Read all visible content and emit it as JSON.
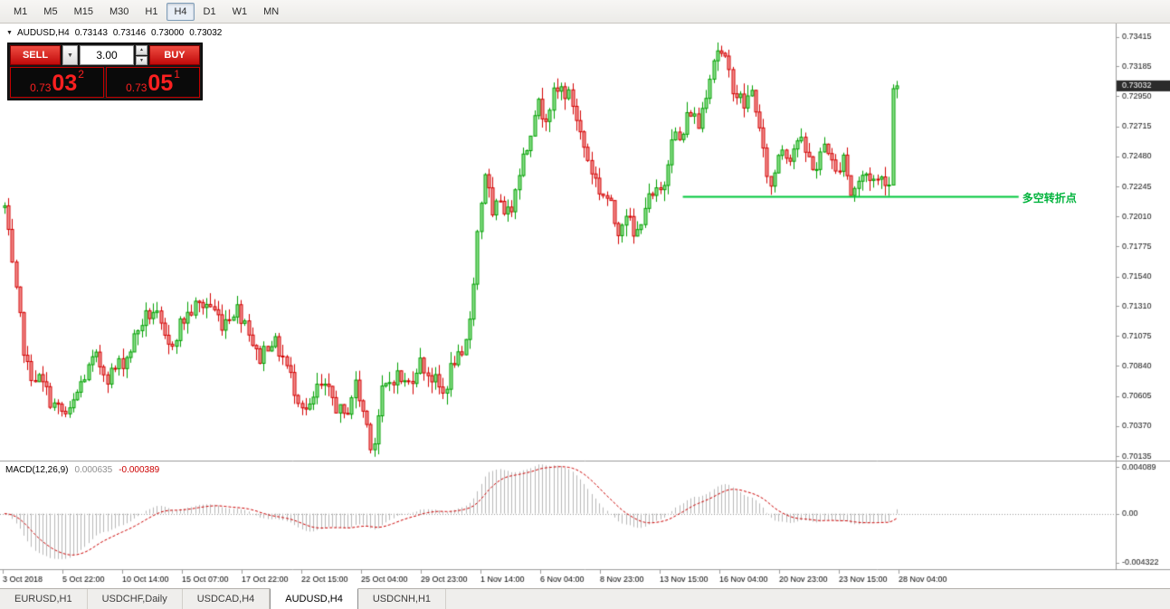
{
  "toolbar": {
    "timeframes": [
      {
        "label": "M1",
        "active": false
      },
      {
        "label": "M5",
        "active": false
      },
      {
        "label": "M15",
        "active": false
      },
      {
        "label": "M30",
        "active": false
      },
      {
        "label": "H1",
        "active": false
      },
      {
        "label": "H4",
        "active": true
      },
      {
        "label": "D1",
        "active": false
      },
      {
        "label": "W1",
        "active": false
      },
      {
        "label": "MN",
        "active": false
      }
    ]
  },
  "symbol_info": {
    "symbol": "AUDUSD,H4",
    "open": "0.73143",
    "high": "0.73146",
    "low": "0.73000",
    "close": "0.73032"
  },
  "trade_widget": {
    "sell_label": "SELL",
    "buy_label": "BUY",
    "volume": "3.00",
    "dropdown_icon": "▼",
    "spin_up_icon": "▲",
    "spin_down_icon": "▼",
    "sell_price": {
      "base": "0.73",
      "big": "03",
      "sup": "2"
    },
    "buy_price": {
      "base": "0.73",
      "big": "05",
      "sup": "1"
    }
  },
  "chart_data": [
    {
      "type": "candlestick",
      "title": "AUDUSD H4 candlestick chart",
      "symbol": "AUDUSD",
      "timeframe": "H4",
      "y_axis": {
        "ticks": [
          "0.73415",
          "0.73185",
          "0.72950",
          "0.72715",
          "0.72480",
          "0.72245",
          "0.72010",
          "0.71775",
          "0.71540",
          "0.71310",
          "0.71075",
          "0.70840",
          "0.70605",
          "0.70370",
          "0.70135"
        ],
        "price_max": 0.7352,
        "price_min": 0.701,
        "current_price": "0.73032",
        "current_price_value": 0.73032
      },
      "x_axis": {
        "labels": [
          "3 Oct 2018",
          "5 Oct 22:00",
          "10 Oct 14:00",
          "15 Oct 07:00",
          "17 Oct 22:00",
          "22 Oct 15:00",
          "25 Oct 04:00",
          "29 Oct 23:00",
          "1 Nov 14:00",
          "6 Nov 04:00",
          "8 Nov 23:00",
          "13 Nov 15:00",
          "16 Nov 04:00",
          "20 Nov 23:00",
          "23 Nov 15:00",
          "28 Nov 04:00"
        ]
      },
      "candle_count": 235,
      "path_anchors": [
        [
          0.004,
          0.7208
        ],
        [
          0.012,
          0.7152
        ],
        [
          0.024,
          0.7082
        ],
        [
          0.036,
          0.7072
        ],
        [
          0.049,
          0.7052
        ],
        [
          0.061,
          0.7044
        ],
        [
          0.073,
          0.7072
        ],
        [
          0.085,
          0.709
        ],
        [
          0.097,
          0.7076
        ],
        [
          0.114,
          0.7092
        ],
        [
          0.126,
          0.7118
        ],
        [
          0.138,
          0.7128
        ],
        [
          0.15,
          0.7096
        ],
        [
          0.162,
          0.7118
        ],
        [
          0.174,
          0.713
        ],
        [
          0.187,
          0.7133
        ],
        [
          0.199,
          0.7118
        ],
        [
          0.211,
          0.713
        ],
        [
          0.221,
          0.7118
        ],
        [
          0.231,
          0.7088
        ],
        [
          0.242,
          0.7106
        ],
        [
          0.253,
          0.7092
        ],
        [
          0.264,
          0.7066
        ],
        [
          0.276,
          0.7046
        ],
        [
          0.285,
          0.7068
        ],
        [
          0.297,
          0.706
        ],
        [
          0.308,
          0.7042
        ],
        [
          0.318,
          0.707
        ],
        [
          0.328,
          0.704
        ],
        [
          0.334,
          0.7018
        ],
        [
          0.342,
          0.7062
        ],
        [
          0.354,
          0.7078
        ],
        [
          0.365,
          0.7068
        ],
        [
          0.375,
          0.7088
        ],
        [
          0.386,
          0.7076
        ],
        [
          0.397,
          0.7062
        ],
        [
          0.407,
          0.709
        ],
        [
          0.415,
          0.7086
        ],
        [
          0.422,
          0.713
        ],
        [
          0.428,
          0.7192
        ],
        [
          0.435,
          0.724
        ],
        [
          0.441,
          0.7196
        ],
        [
          0.448,
          0.7216
        ],
        [
          0.456,
          0.72
        ],
        [
          0.464,
          0.7236
        ],
        [
          0.472,
          0.7256
        ],
        [
          0.48,
          0.729
        ],
        [
          0.488,
          0.728
        ],
        [
          0.496,
          0.7295
        ],
        [
          0.504,
          0.7301
        ],
        [
          0.513,
          0.729
        ],
        [
          0.521,
          0.7262
        ],
        [
          0.529,
          0.724
        ],
        [
          0.537,
          0.7222
        ],
        [
          0.545,
          0.7214
        ],
        [
          0.553,
          0.719
        ],
        [
          0.561,
          0.7206
        ],
        [
          0.569,
          0.718
        ],
        [
          0.577,
          0.721
        ],
        [
          0.586,
          0.7216
        ],
        [
          0.594,
          0.7222
        ],
        [
          0.602,
          0.7268
        ],
        [
          0.61,
          0.7258
        ],
        [
          0.618,
          0.7286
        ],
        [
          0.626,
          0.7272
        ],
        [
          0.634,
          0.7306
        ],
        [
          0.642,
          0.7334
        ],
        [
          0.65,
          0.732
        ],
        [
          0.659,
          0.7298
        ],
        [
          0.667,
          0.7288
        ],
        [
          0.675,
          0.73
        ],
        [
          0.683,
          0.7252
        ],
        [
          0.691,
          0.7222
        ],
        [
          0.699,
          0.7258
        ],
        [
          0.707,
          0.7248
        ],
        [
          0.715,
          0.7262
        ],
        [
          0.723,
          0.7248
        ],
        [
          0.732,
          0.7238
        ],
        [
          0.74,
          0.7262
        ],
        [
          0.748,
          0.7232
        ],
        [
          0.756,
          0.7252
        ],
        [
          0.762,
          0.7218
        ],
        [
          0.769,
          0.7228
        ],
        [
          0.777,
          0.7235
        ],
        [
          0.785,
          0.7228
        ],
        [
          0.793,
          0.7232
        ],
        [
          0.7975,
          0.7226
        ],
        [
          0.801,
          0.7328
        ],
        [
          0.8035,
          0.7303
        ]
      ],
      "colors": {
        "up_fill": "#8fe08f",
        "up_border": "#00a000",
        "down_fill": "#f29494",
        "down_border": "#d40000",
        "background": "#ffffff",
        "axis_text": "#111111"
      },
      "support_line": {
        "price": 0.7217,
        "x_start_frac": 0.612,
        "x_end_frac": 0.913,
        "color": "#00c83c",
        "label": "多空转折点"
      }
    },
    {
      "type": "macd",
      "label": "MACD(12,26,9)",
      "values": [
        "0.000635",
        "-0.000389"
      ],
      "params": {
        "fast": 12,
        "slow": 26,
        "signal": 9
      },
      "y_axis": {
        "ticks": [
          "0.004089",
          "0.00",
          "-0.004322"
        ],
        "max": 0.0045,
        "min": -0.0048
      },
      "colors": {
        "histogram": "#b8b8b8",
        "signal": "#cc0000",
        "zero_line": "#999999"
      }
    }
  ],
  "bottom_tabs": [
    {
      "label": "EURUSD,H1",
      "active": false
    },
    {
      "label": "USDCHF,Daily",
      "active": false
    },
    {
      "label": "USDCAD,H4",
      "active": false
    },
    {
      "label": "AUDUSD,H4",
      "active": true
    },
    {
      "label": "USDCNH,H1",
      "active": false
    }
  ]
}
